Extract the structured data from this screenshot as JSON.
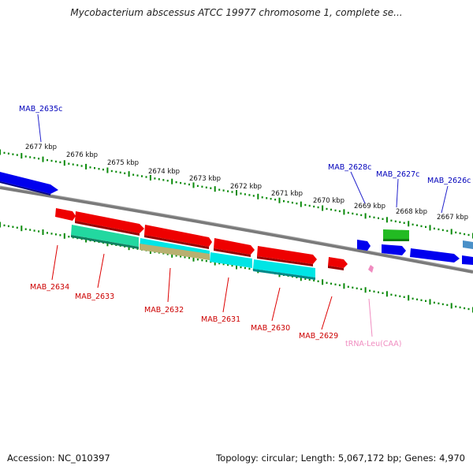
{
  "title": "Mycobacterium abscessus ATCC 19977 chromosome 1, complete se...",
  "footer": {
    "accession": "Accession: NC_010397",
    "summary": "Topology: circular; Length: 5,067,172 bp; Genes: 4,970"
  },
  "ruler": [
    {
      "label": "2677 kbp"
    },
    {
      "label": "2676 kbp"
    },
    {
      "label": "2675 kbp"
    },
    {
      "label": "2674 kbp"
    },
    {
      "label": "2673 kbp"
    },
    {
      "label": "2672 kbp"
    },
    {
      "label": "2671 kbp"
    },
    {
      "label": "2670 kbp"
    },
    {
      "label": "2669 kbp"
    },
    {
      "label": "2668 kbp"
    },
    {
      "label": "2667 kbp"
    }
  ],
  "genes": [
    {
      "label": "MAB_2635c",
      "strand": "-",
      "color": "#0000cc"
    },
    {
      "label": "MAB_2628c",
      "strand": "-",
      "color": "#0000cc"
    },
    {
      "label": "MAB_2627c",
      "strand": "-",
      "color": "#0000cc"
    },
    {
      "label": "MAB_2626c",
      "strand": "-",
      "color": "#0000cc"
    },
    {
      "label": "MAB_2634",
      "strand": "+",
      "color": "#cc0000"
    },
    {
      "label": "MAB_2633",
      "strand": "+",
      "color": "#cc0000"
    },
    {
      "label": "MAB_2632",
      "strand": "+",
      "color": "#cc0000"
    },
    {
      "label": "MAB_2631",
      "strand": "+",
      "color": "#cc0000"
    },
    {
      "label": "MAB_2630",
      "strand": "+",
      "color": "#cc0000"
    },
    {
      "label": "MAB_2629",
      "strand": "+",
      "color": "#cc0000"
    },
    {
      "label": "tRNA-Leu(CAA)",
      "strand": "+",
      "color": "#f08cc0"
    }
  ],
  "colors": {
    "red_gene": "#ee0000",
    "blue_gene": "#0000ee",
    "green_gene": "#22bb22",
    "cyan_gene": "#00e5e5",
    "teal_gene": "#22d8a0",
    "khaki_gene": "#b8b070",
    "tick_green": "#0a8a0a",
    "backbone": "#7a7a7a"
  }
}
